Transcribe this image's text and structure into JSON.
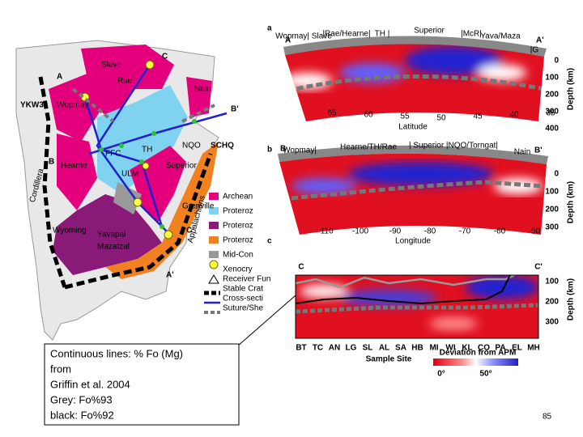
{
  "map": {
    "labels": [
      "Slave",
      "Rae",
      "Nain",
      "Hearne",
      "Wopmay",
      "Cordillera",
      "Wyoming",
      "Yavapai",
      "Mazatzal",
      "TH",
      "Superior",
      "NQO",
      "SCHQ",
      "Grenville",
      "Appalachians",
      "YKW3",
      "FFC",
      "ULM",
      "A",
      "B",
      "C",
      "B'",
      "A'",
      "C'"
    ],
    "legend": [
      "Archean",
      "Proteroz",
      "Proteroz",
      "Proteroz",
      "Mid-Con",
      "Xenocry",
      "Receiver Fun",
      "Stable Crat",
      "Cross-secti",
      "Suture/She"
    ]
  },
  "panels": [
    {
      "letter": "a",
      "start": "A",
      "end": "A'",
      "regions": [
        "Wopmay| Slave",
        "|Rae/Hearne|",
        "TH |",
        "Superior",
        "|McR|",
        "Yava/Maza",
        "|G"
      ],
      "xticks": [
        "65",
        "60",
        "55",
        "50",
        "45",
        "40",
        "35"
      ],
      "xlabel": "Latitude",
      "depth_ticks": [
        "0",
        "100",
        "200",
        "300",
        "400"
      ],
      "depth_label": "Depth (km)"
    },
    {
      "letter": "b",
      "start": "B",
      "end": "B'",
      "regions": [
        "Wopmay|",
        "Hearne/TH/Rae",
        "| Superior |NQO/Torngat|",
        "Nain"
      ],
      "xticks": [
        "-110",
        "-100",
        "-90",
        "-80",
        "-70",
        "-60",
        "-50"
      ],
      "xlabel": "Longitude",
      "depth_ticks": [
        "0",
        "100",
        "200",
        "300"
      ],
      "depth_label": "Depth (km)"
    },
    {
      "letter": "c",
      "start": "C",
      "end": "C'",
      "sites": [
        "BT",
        "TC",
        "AN",
        "LG",
        "SL",
        "AL",
        "SA",
        "HB",
        "MI",
        "WI",
        "KL",
        "CO",
        "PA",
        "EL",
        "MH"
      ],
      "xlabel": "Sample Site",
      "depth_ticks": [
        "100",
        "200",
        "300"
      ],
      "depth_label": "Depth (km)",
      "colorbar_title": "Deviation from APM",
      "colorbar_ticks": [
        "0°",
        "50°"
      ]
    }
  ],
  "note": {
    "lines": [
      "Continuous lines: % Fo (Mg)",
      "from",
      "Griffin et al. 2004",
      "Grey: Fo%93",
      "black: Fo%92"
    ]
  },
  "page_number": "85"
}
